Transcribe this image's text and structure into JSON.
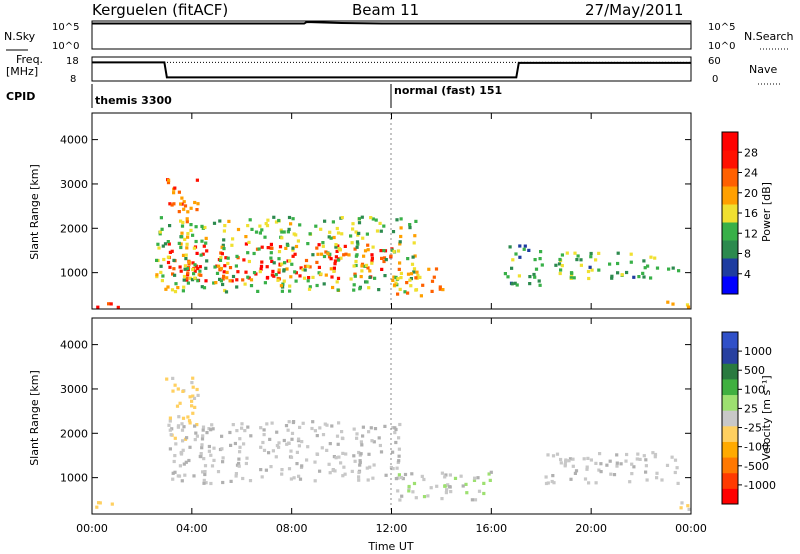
{
  "header": {
    "station": "Kerguelen (fitACF)",
    "beam": "Beam 11",
    "date": "27/May/2011"
  },
  "top_panels": {
    "nsky_label": "N.Sky",
    "nsky_ticks": [
      "10^5",
      "10^0"
    ],
    "nsearch_label": "N.Search",
    "freq_label_1": "Freq.",
    "freq_label_2": "[MHz]",
    "freq_ticks": [
      "18",
      "8"
    ],
    "nave_label": "Nave",
    "nave_ticks": [
      "60",
      "0"
    ],
    "cpid_label": "CPID",
    "cpid_1": "themis 3300",
    "cpid_2": "normal (fast) 151"
  },
  "colors": {
    "power_scale": [
      "#0000ff",
      "#1e3ca0",
      "#2c8a4e",
      "#38b048",
      "#f0e030",
      "#ffa000",
      "#ff6000",
      "#ff1000",
      "#ff0000"
    ],
    "velocity_scale": [
      "#ff0000",
      "#ff3a00",
      "#ff7800",
      "#ffaa00",
      "#ffd060",
      "#c8c8c8",
      "#9de070",
      "#40b040",
      "#2a7a40",
      "#2840a0",
      "#3050c8"
    ],
    "ground_scatter": "#b0b0b0"
  },
  "chart_data": [
    {
      "type": "line",
      "name": "nsky-panel",
      "title": "",
      "xlabel": "",
      "ylabel": "N.Sky",
      "x": [
        0,
        2,
        4,
        6,
        8,
        8.5,
        8.6,
        10,
        12,
        14,
        16,
        18,
        20,
        22,
        24
      ],
      "y_log10": [
        4.7,
        4.7,
        4.7,
        4.7,
        4.7,
        4.7,
        5.0,
        4.8,
        4.7,
        4.7,
        4.7,
        4.7,
        4.7,
        4.7,
        4.7
      ]
    },
    {
      "type": "line",
      "name": "freq-panel",
      "ylabel": "Freq. [MHz]",
      "ylim": [
        8,
        18
      ],
      "x": [
        0,
        2.9,
        3.0,
        17.0,
        17.1,
        24
      ],
      "y": [
        16,
        16,
        9.2,
        9.2,
        15.8,
        15.8
      ],
      "nave_dotted_level": 48
    },
    {
      "type": "heatmap",
      "name": "power-panel",
      "title": "",
      "xlabel": "",
      "ylabel": "Slant Range [km]",
      "colorbar_label": "Power [dB]",
      "colorbar_ticks": [
        "28",
        "24",
        "20",
        "16",
        "12",
        "8",
        "4"
      ],
      "yticks": [
        "4000",
        "3000",
        "2000",
        "1000"
      ],
      "xlim": [
        0,
        24
      ],
      "ylim": [
        180,
        4600
      ],
      "regions": [
        {
          "t0": 2.9,
          "t1": 4.2,
          "r0": 2100,
          "r1": 3200,
          "level": 22
        },
        {
          "t0": 3.0,
          "t1": 12.0,
          "r0": 850,
          "r1": 1700,
          "level": 26
        },
        {
          "t0": 2.5,
          "t1": 13.0,
          "r0": 600,
          "r1": 2300,
          "level": 14
        },
        {
          "t0": 12.0,
          "t1": 14.0,
          "r0": 500,
          "r1": 1200,
          "level": 20
        },
        {
          "t0": 16.5,
          "t1": 18.0,
          "r0": 700,
          "r1": 1700,
          "level": 10
        },
        {
          "t0": 18.5,
          "t1": 23.5,
          "r0": 900,
          "r1": 1500,
          "level": 12
        },
        {
          "t0": 0.0,
          "t1": 1.0,
          "r0": 250,
          "r1": 450,
          "level": 28
        },
        {
          "t0": 23.0,
          "t1": 24.0,
          "r0": 250,
          "r1": 450,
          "level": 18
        }
      ]
    },
    {
      "type": "heatmap",
      "name": "velocity-panel",
      "title": "",
      "xlabel": "Time UT",
      "ylabel": "Slant Range [km]",
      "colorbar_label": "Velocity [m s⁻¹]",
      "colorbar_ticks": [
        "1000",
        "500",
        "100",
        "25",
        "-25",
        "-100",
        "-500",
        "-1000"
      ],
      "yticks": [
        "4000",
        "3000",
        "2000",
        "1000"
      ],
      "xticks": [
        "00:00",
        "04:00",
        "08:00",
        "12:00",
        "16:00",
        "20:00",
        "00:00"
      ],
      "xlim": [
        0,
        24
      ],
      "ylim": [
        180,
        4600
      ],
      "regions": [
        {
          "t0": 2.9,
          "t1": 4.2,
          "r0": 1900,
          "r1": 3300,
          "vel": -120
        },
        {
          "t0": 3.0,
          "t1": 12.5,
          "r0": 900,
          "r1": 2300,
          "vel": 0
        },
        {
          "t0": 0.0,
          "t1": 1.0,
          "r0": 300,
          "r1": 500,
          "vel": -200
        },
        {
          "t0": 12.0,
          "t1": 16.0,
          "r0": 500,
          "r1": 1200,
          "vel": 60
        },
        {
          "t0": 18.0,
          "t1": 23.5,
          "r0": 900,
          "r1": 1600,
          "vel": 0
        },
        {
          "t0": 23.0,
          "t1": 24.0,
          "r0": 300,
          "r1": 500,
          "vel": -150
        }
      ]
    }
  ]
}
